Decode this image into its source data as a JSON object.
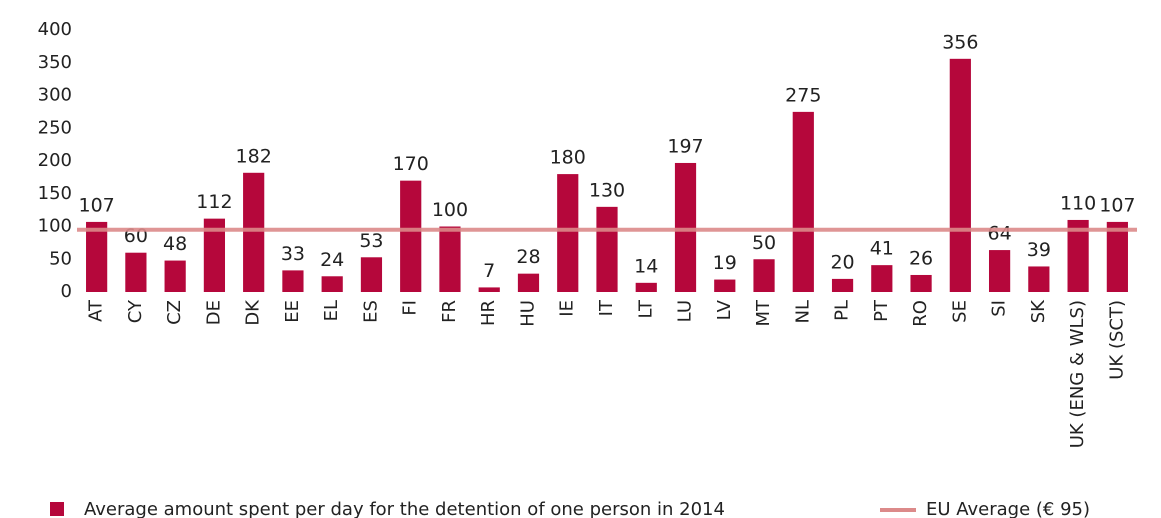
{
  "chart_data": {
    "type": "bar",
    "categories": [
      "AT",
      "CY",
      "CZ",
      "DE",
      "DK",
      "EE",
      "EL",
      "ES",
      "FI",
      "FR",
      "HR",
      "HU",
      "IE",
      "IT",
      "LT",
      "LU",
      "LV",
      "MT",
      "NL",
      "PL",
      "PT",
      "RO",
      "SE",
      "SI",
      "SK",
      "UK (ENG & WLS)",
      "UK (SCT)"
    ],
    "series": [
      {
        "name": "Average amount spent per day for the detention of one person in 2014",
        "color": "#b5073b",
        "values": [
          107,
          60,
          48,
          112,
          182,
          33,
          24,
          53,
          170,
          100,
          7,
          28,
          180,
          130,
          14,
          197,
          19,
          50,
          275,
          20,
          41,
          26,
          356,
          64,
          39,
          110,
          107
        ]
      }
    ],
    "average": {
      "name": "EU Average (€ 95)",
      "value": 95,
      "color": "#dc8a8a"
    },
    "ylim": [
      0,
      400
    ],
    "yticks": [
      0,
      50,
      100,
      150,
      200,
      250,
      300,
      350,
      400
    ],
    "grid": false
  }
}
